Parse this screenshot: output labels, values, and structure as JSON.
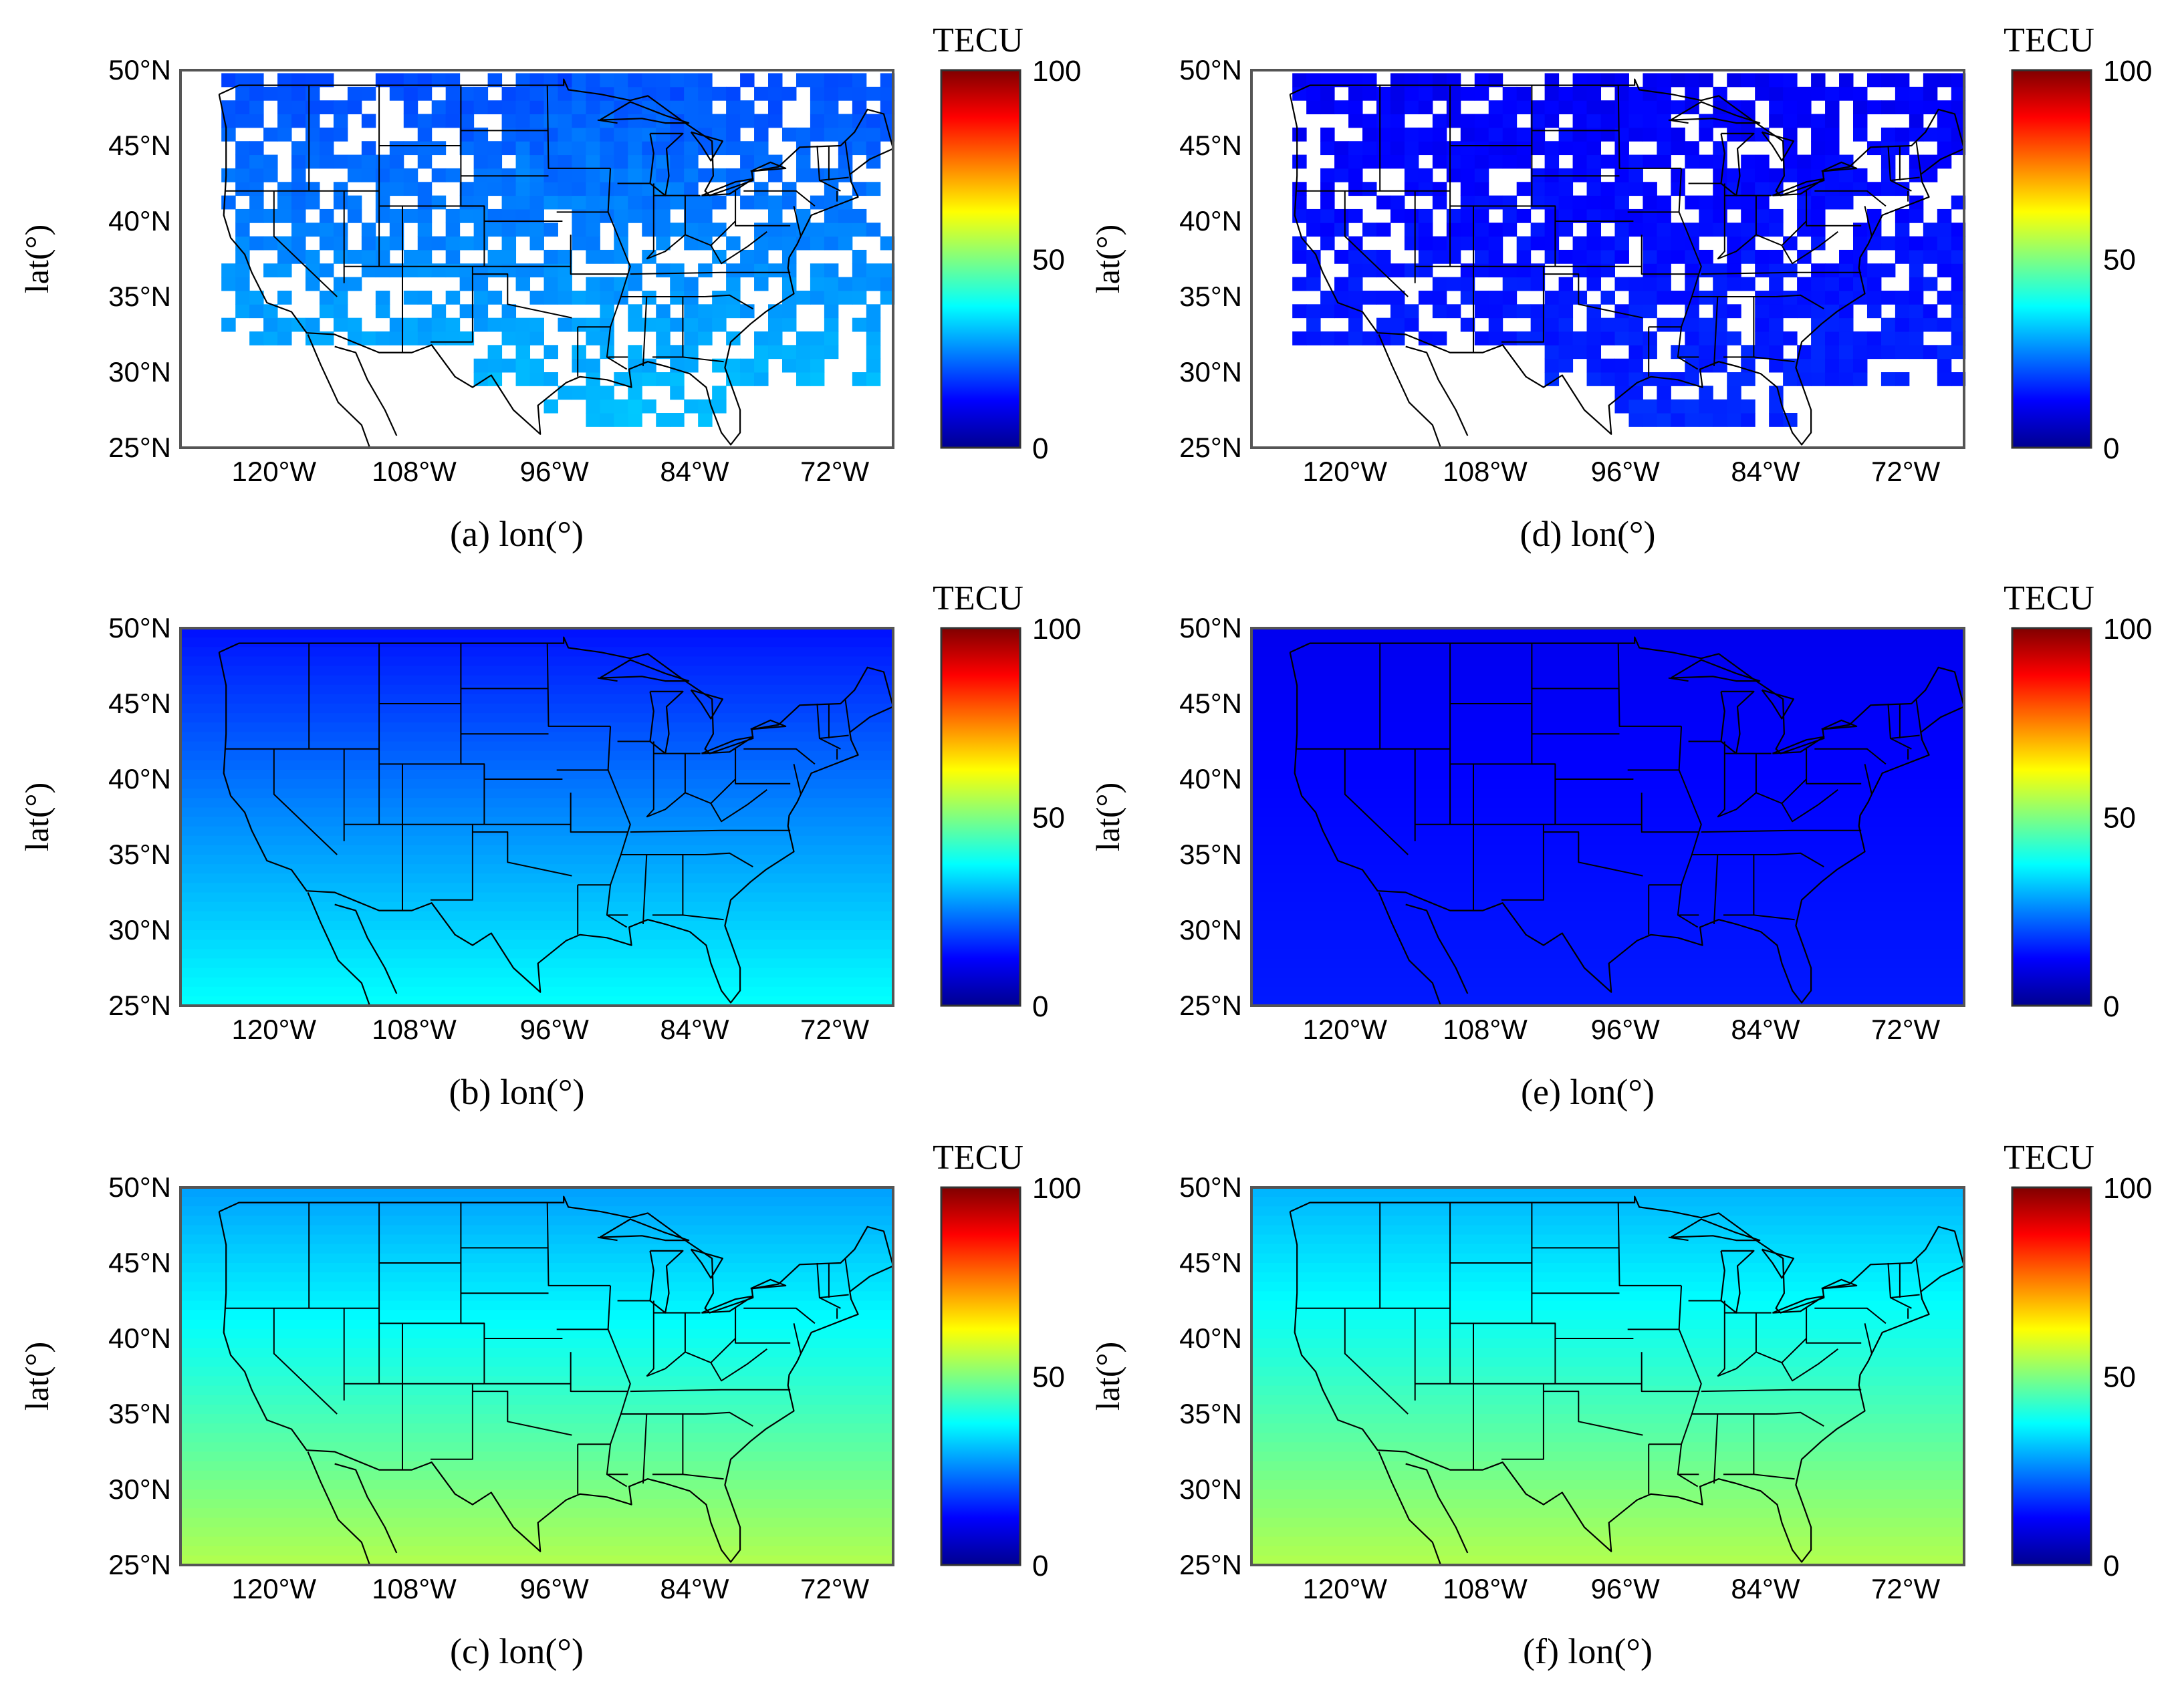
{
  "figure": {
    "colorbar": {
      "unit_label": "TECU",
      "ticks": [
        "100",
        "50",
        "0"
      ],
      "range": [
        0,
        100
      ]
    },
    "y_axis_label": "lat(°)",
    "lat_ticks": [
      "50°N",
      "45°N",
      "40°N",
      "35°N",
      "30°N",
      "25°N"
    ],
    "lon_ticks": [
      "120°W",
      "108°W",
      "96°W",
      "84°W",
      "72°W"
    ],
    "lat_range": [
      25,
      50
    ],
    "lon_range": [
      -128,
      -67
    ],
    "panels": [
      {
        "id": "a",
        "caption": "(a) lon(°)",
        "style": "sparse-observed",
        "tec_north": 20,
        "tec_south": 33
      },
      {
        "id": "b",
        "caption": "(b) lon(°)",
        "style": "gradient",
        "tec_north": 14,
        "tec_south": 38
      },
      {
        "id": "c",
        "caption": "(c) lon(°)",
        "style": "gradient",
        "tec_north": 28,
        "tec_south": 55
      },
      {
        "id": "d",
        "caption": "(d) lon(°)",
        "style": "sparse-observed",
        "tec_north": 12,
        "tec_south": 17
      },
      {
        "id": "e",
        "caption": "(e) lon(°)",
        "style": "gradient",
        "tec_north": 11,
        "tec_south": 15
      },
      {
        "id": "f",
        "caption": "(f) lon(°)",
        "style": "gradient",
        "tec_north": 30,
        "tec_south": 55
      }
    ]
  }
}
